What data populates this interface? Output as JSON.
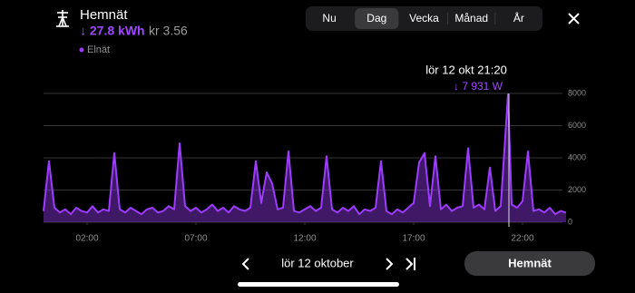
{
  "header": {
    "title": "Hemnät",
    "energy": "↓ 27.8 kWh",
    "cost": "kr 3.56"
  },
  "tabs": [
    "Nu",
    "Dag",
    "Vecka",
    "Månad",
    "År"
  ],
  "selected_tab": "Dag",
  "tooltip": {
    "time": "lör 12 okt 21:20",
    "value": "↓ 7 931 W"
  },
  "chart_data": {
    "type": "area",
    "x": [
      0,
      0.25,
      0.5,
      0.75,
      1,
      1.25,
      1.5,
      1.75,
      2,
      2.25,
      2.5,
      2.75,
      3,
      3.25,
      3.5,
      3.75,
      4,
      4.25,
      4.5,
      4.75,
      5,
      5.25,
      5.5,
      5.75,
      6,
      6.25,
      6.5,
      6.75,
      7,
      7.25,
      7.5,
      7.75,
      8,
      8.25,
      8.5,
      8.75,
      9,
      9.25,
      9.5,
      9.75,
      10,
      10.25,
      10.5,
      10.75,
      11,
      11.25,
      11.5,
      11.75,
      12,
      12.25,
      12.5,
      12.75,
      13,
      13.25,
      13.5,
      13.75,
      14,
      14.25,
      14.5,
      14.75,
      15,
      15.25,
      15.5,
      15.75,
      16,
      16.25,
      16.5,
      16.75,
      17,
      17.25,
      17.5,
      17.75,
      18,
      18.25,
      18.5,
      18.75,
      19,
      19.25,
      19.5,
      19.75,
      20,
      20.25,
      20.5,
      20.75,
      21,
      21.333,
      21.5,
      21.75,
      22,
      22.25,
      22.5,
      22.75,
      23,
      23.25,
      23.5,
      23.75,
      24
    ],
    "series": [
      {
        "name": "Elnät",
        "color": "#9d3bff",
        "values": [
          700,
          3800,
          900,
          600,
          800,
          500,
          900,
          700,
          600,
          1000,
          600,
          800,
          700,
          4300,
          800,
          600,
          900,
          700,
          500,
          800,
          900,
          600,
          700,
          1000,
          800,
          4900,
          1000,
          700,
          900,
          600,
          800,
          1100,
          700,
          900,
          600,
          1000,
          800,
          700,
          900,
          3800,
          1200,
          3100,
          2400,
          800,
          900,
          4400,
          700,
          600,
          800,
          1000,
          700,
          900,
          4100,
          800,
          600,
          900,
          700,
          1000,
          500,
          800,
          700,
          900,
          3800,
          700,
          500,
          800,
          600,
          900,
          1200,
          3700,
          4300,
          1000,
          4100,
          800,
          1100,
          700,
          900,
          1000,
          4600,
          900,
          1100,
          800,
          3400,
          700,
          1000,
          7931,
          1100,
          900,
          1300,
          4400,
          700,
          800,
          600,
          900,
          500,
          700,
          600
        ]
      }
    ],
    "xlim": [
      0,
      24
    ],
    "xticks": [
      {
        "value": 2,
        "label": "02:00"
      },
      {
        "value": 7,
        "label": "07:00"
      },
      {
        "value": 12,
        "label": "12:00"
      },
      {
        "value": 17,
        "label": "17:00"
      },
      {
        "value": 22,
        "label": "22:00"
      }
    ],
    "ylim": [
      0,
      8000
    ],
    "yticks": [
      0,
      2000,
      4000,
      6000,
      8000
    ],
    "grid": true
  },
  "footer": {
    "date": "lör 12 oktober",
    "button": "Hemnät"
  }
}
